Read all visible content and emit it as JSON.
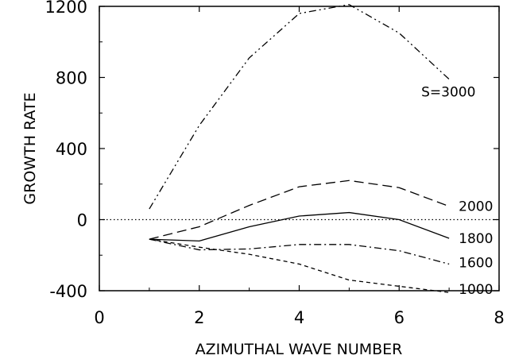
{
  "chart_data": {
    "type": "line",
    "xlabel": "AZIMUTHAL WAVE NUMBER",
    "ylabel": "GROWTH RATE",
    "xlim": [
      0,
      8
    ],
    "ylim": [
      -400,
      1200
    ],
    "xticks": [
      "0",
      "2",
      "4",
      "6",
      "8"
    ],
    "yticks": [
      "1200",
      "800",
      "400",
      "0",
      "-400"
    ],
    "grid": false,
    "reference_line": {
      "y": 0,
      "style": "dotted"
    },
    "series": [
      {
        "name": "S=3000",
        "style": "dash-dot-dot",
        "x": [
          1,
          2,
          3,
          4,
          5,
          6,
          7
        ],
        "y": [
          60,
          530,
          910,
          1160,
          1210,
          1050,
          790
        ]
      },
      {
        "name": "2000",
        "style": "long-dash",
        "x": [
          1,
          2,
          3,
          4,
          5,
          6,
          7
        ],
        "y": [
          -110,
          -40,
          80,
          185,
          220,
          180,
          75
        ]
      },
      {
        "name": "1800",
        "style": "solid",
        "x": [
          1,
          2,
          3,
          4,
          5,
          6,
          7
        ],
        "y": [
          -110,
          -120,
          -40,
          20,
          40,
          0,
          -105
        ]
      },
      {
        "name": "1600",
        "style": "dash-dot",
        "x": [
          1,
          2,
          3,
          4,
          5,
          6,
          7
        ],
        "y": [
          -110,
          -170,
          -165,
          -140,
          -140,
          -175,
          -250
        ]
      },
      {
        "name": "1000",
        "style": "short-dash",
        "x": [
          1,
          2,
          3,
          4,
          5,
          6,
          7
        ],
        "y": [
          -110,
          -155,
          -195,
          -250,
          -340,
          -375,
          -410
        ]
      }
    ]
  }
}
